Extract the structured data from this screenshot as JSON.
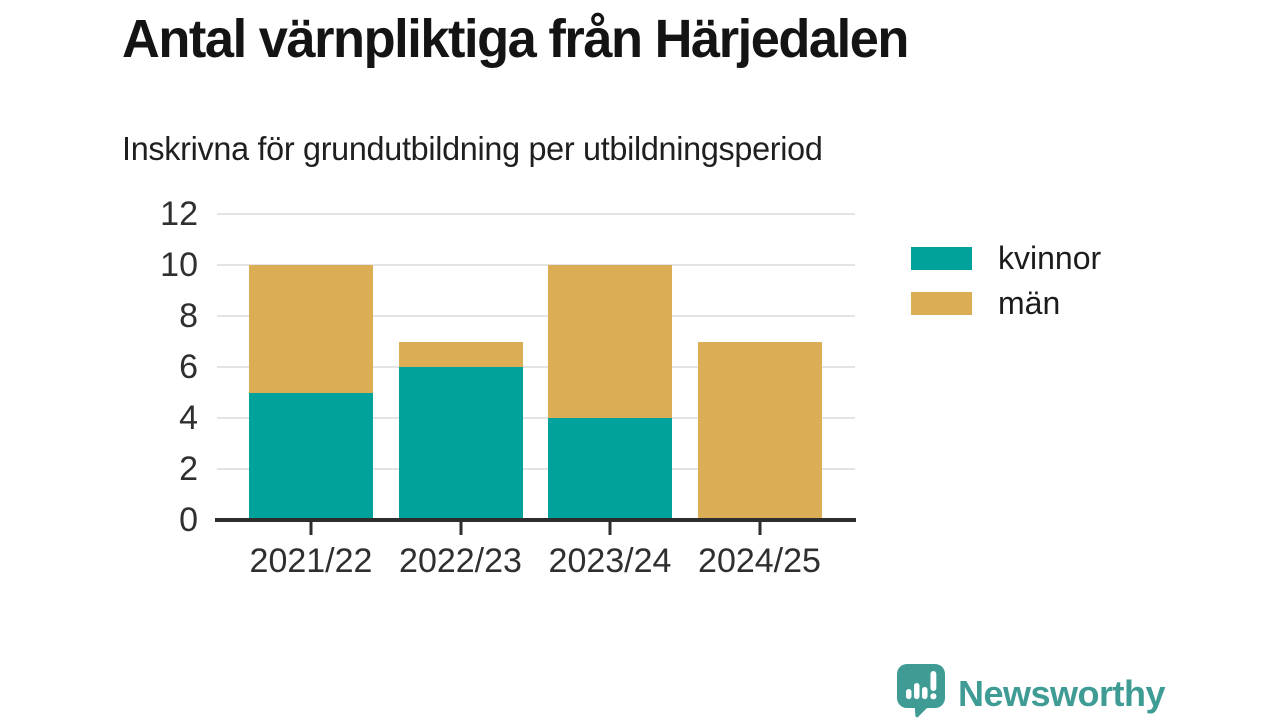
{
  "title": "Antal värnpliktiga från Härjedalen",
  "subtitle": "Inskrivna för grundutbildning per utbildningsperiod",
  "chart_data": {
    "type": "bar",
    "stacked": true,
    "title": "Antal värnpliktiga från Härjedalen",
    "subtitle": "Inskrivna för grundutbildning per utbildningsperiod",
    "categories": [
      "2021/22",
      "2022/23",
      "2023/24",
      "2024/25"
    ],
    "series": [
      {
        "name": "kvinnor",
        "color": "#00a29b",
        "values": [
          5,
          6,
          4,
          0
        ]
      },
      {
        "name": "män",
        "color": "#dbae56",
        "values": [
          5,
          1,
          6,
          7
        ]
      }
    ],
    "stack_totals": [
      10,
      7,
      10,
      7
    ],
    "xlabel": "",
    "ylabel": "",
    "ylim": [
      0,
      12
    ],
    "yticks": [
      0,
      2,
      4,
      6,
      8,
      10,
      12
    ],
    "grid": true,
    "legend_position": "right"
  },
  "colors": {
    "kvinnor": "#00a29b",
    "man": "#dbae56",
    "grid": "#e4e4e4",
    "axis_line": "#2d2d2d",
    "tick_text": "#2f2f2f",
    "title_text": "#141414",
    "brand": "#3f9c95",
    "background": "#ffffff"
  },
  "branding": {
    "name": "Newsworthy",
    "logo_icon": "newsworthy-speech-bubble-barchart-icon"
  }
}
